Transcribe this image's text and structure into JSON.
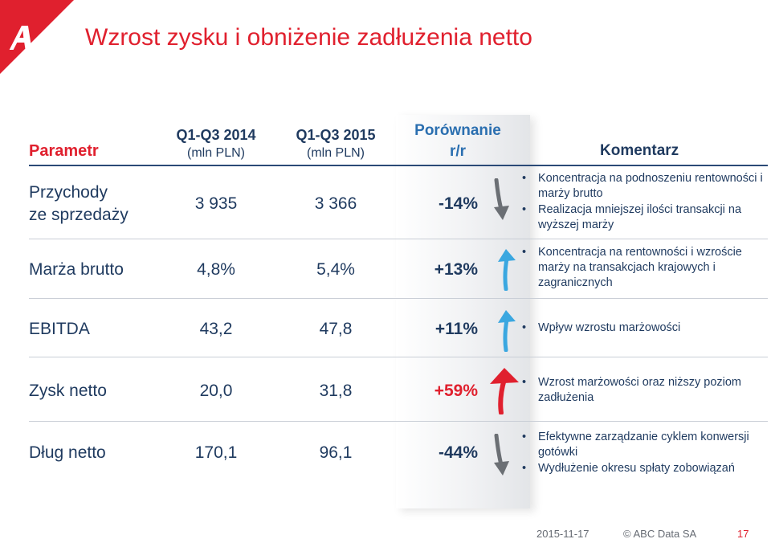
{
  "title": "Wzrost zysku i obniżenie zadłużenia netto",
  "header": {
    "parametr": "Parametr",
    "col1": {
      "label": "Q1-Q3 2014",
      "unit": "(mln PLN)"
    },
    "col2": {
      "label": "Q1-Q3 2015",
      "unit": "(mln PLN)"
    },
    "compare": {
      "line1": "Porównanie",
      "line2": "r/r"
    },
    "komentarz": "Komentarz"
  },
  "rows": [
    {
      "param_line1": "Przychody",
      "param_line2": "ze sprzedaży",
      "v2014": "3 935",
      "v2015": "3 366",
      "change": "-14%",
      "direction": "down",
      "comments": [
        "Koncentracja na podnoszeniu rentowności i marży brutto",
        "Realizacja mniejszej ilości transakcji na wyższej marży"
      ]
    },
    {
      "param": "Marża brutto",
      "v2014": "4,8%",
      "v2015": "5,4%",
      "change": "+13%",
      "direction": "up",
      "comments": [
        "Koncentracja na rentowności i wzroście marży na transakcjach krajowych i zagranicznych"
      ]
    },
    {
      "param": "EBITDA",
      "v2014": "43,2",
      "v2015": "47,8",
      "change": "+11%",
      "direction": "up",
      "comments": [
        "Wpływ wzrostu marżowości"
      ]
    },
    {
      "param": "Zysk netto",
      "v2014": "20,0",
      "v2015": "31,8",
      "change": "+59%",
      "direction": "up-strong",
      "comments": [
        "Wzrost marżowości oraz niższy poziom zadłużenia"
      ]
    },
    {
      "param": "Dług netto",
      "v2014": "170,1",
      "v2015": "96,1",
      "change": "-44%",
      "direction": "down",
      "comments": [
        "Efektywne zarządzanie cyklem konwersji gotówki",
        "Wydłużenie okresu spłaty zobowiązań"
      ]
    }
  ],
  "footer": {
    "date": "2015-11-17",
    "company": "© ABC Data SA",
    "page": "17"
  },
  "colors": {
    "accent_red": "#e0202e",
    "navy": "#1f3a5f",
    "blue_arrow": "#3aa7e0",
    "grey_arrow": "#6b6f74"
  }
}
